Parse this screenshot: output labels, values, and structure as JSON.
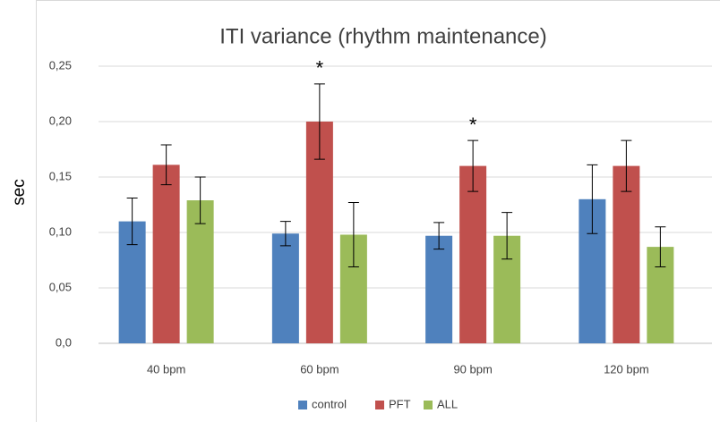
{
  "chart_data": {
    "type": "bar",
    "title": "ITI variance (rhythm maintenance)",
    "y_label": "sec",
    "categories": [
      "40 bpm",
      "60 bpm",
      "90 bpm",
      "120 bpm"
    ],
    "series": [
      {
        "name": "control",
        "color": "#4f81bd",
        "values": [
          0.11,
          0.099,
          0.097,
          0.13
        ],
        "errors": [
          0.021,
          0.011,
          0.012,
          0.031
        ]
      },
      {
        "name": "PFT",
        "color": "#c0504d",
        "values": [
          0.161,
          0.2,
          0.16,
          0.16
        ],
        "errors": [
          0.018,
          0.034,
          0.023,
          0.023
        ]
      },
      {
        "name": "ALL",
        "color": "#9bbb59",
        "values": [
          0.129,
          0.098,
          0.097,
          0.087
        ],
        "errors": [
          0.021,
          0.029,
          0.021,
          0.018
        ]
      }
    ],
    "annotations": [
      {
        "text": "*",
        "category": "60 bpm",
        "series": "PFT"
      },
      {
        "text": "*",
        "category": "90 bpm",
        "series": "PFT"
      }
    ],
    "ylim": [
      0,
      0.25
    ],
    "yticks": [
      {
        "value": 0,
        "label": "0,0"
      },
      {
        "value": 0.05,
        "label": "0,05"
      },
      {
        "value": 0.1,
        "label": "0,10"
      },
      {
        "value": 0.15,
        "label": "0,15"
      },
      {
        "value": 0.2,
        "label": "0,20"
      },
      {
        "value": 0.25,
        "label": "0,25"
      }
    ],
    "grid": true,
    "legend": "bottom"
  }
}
